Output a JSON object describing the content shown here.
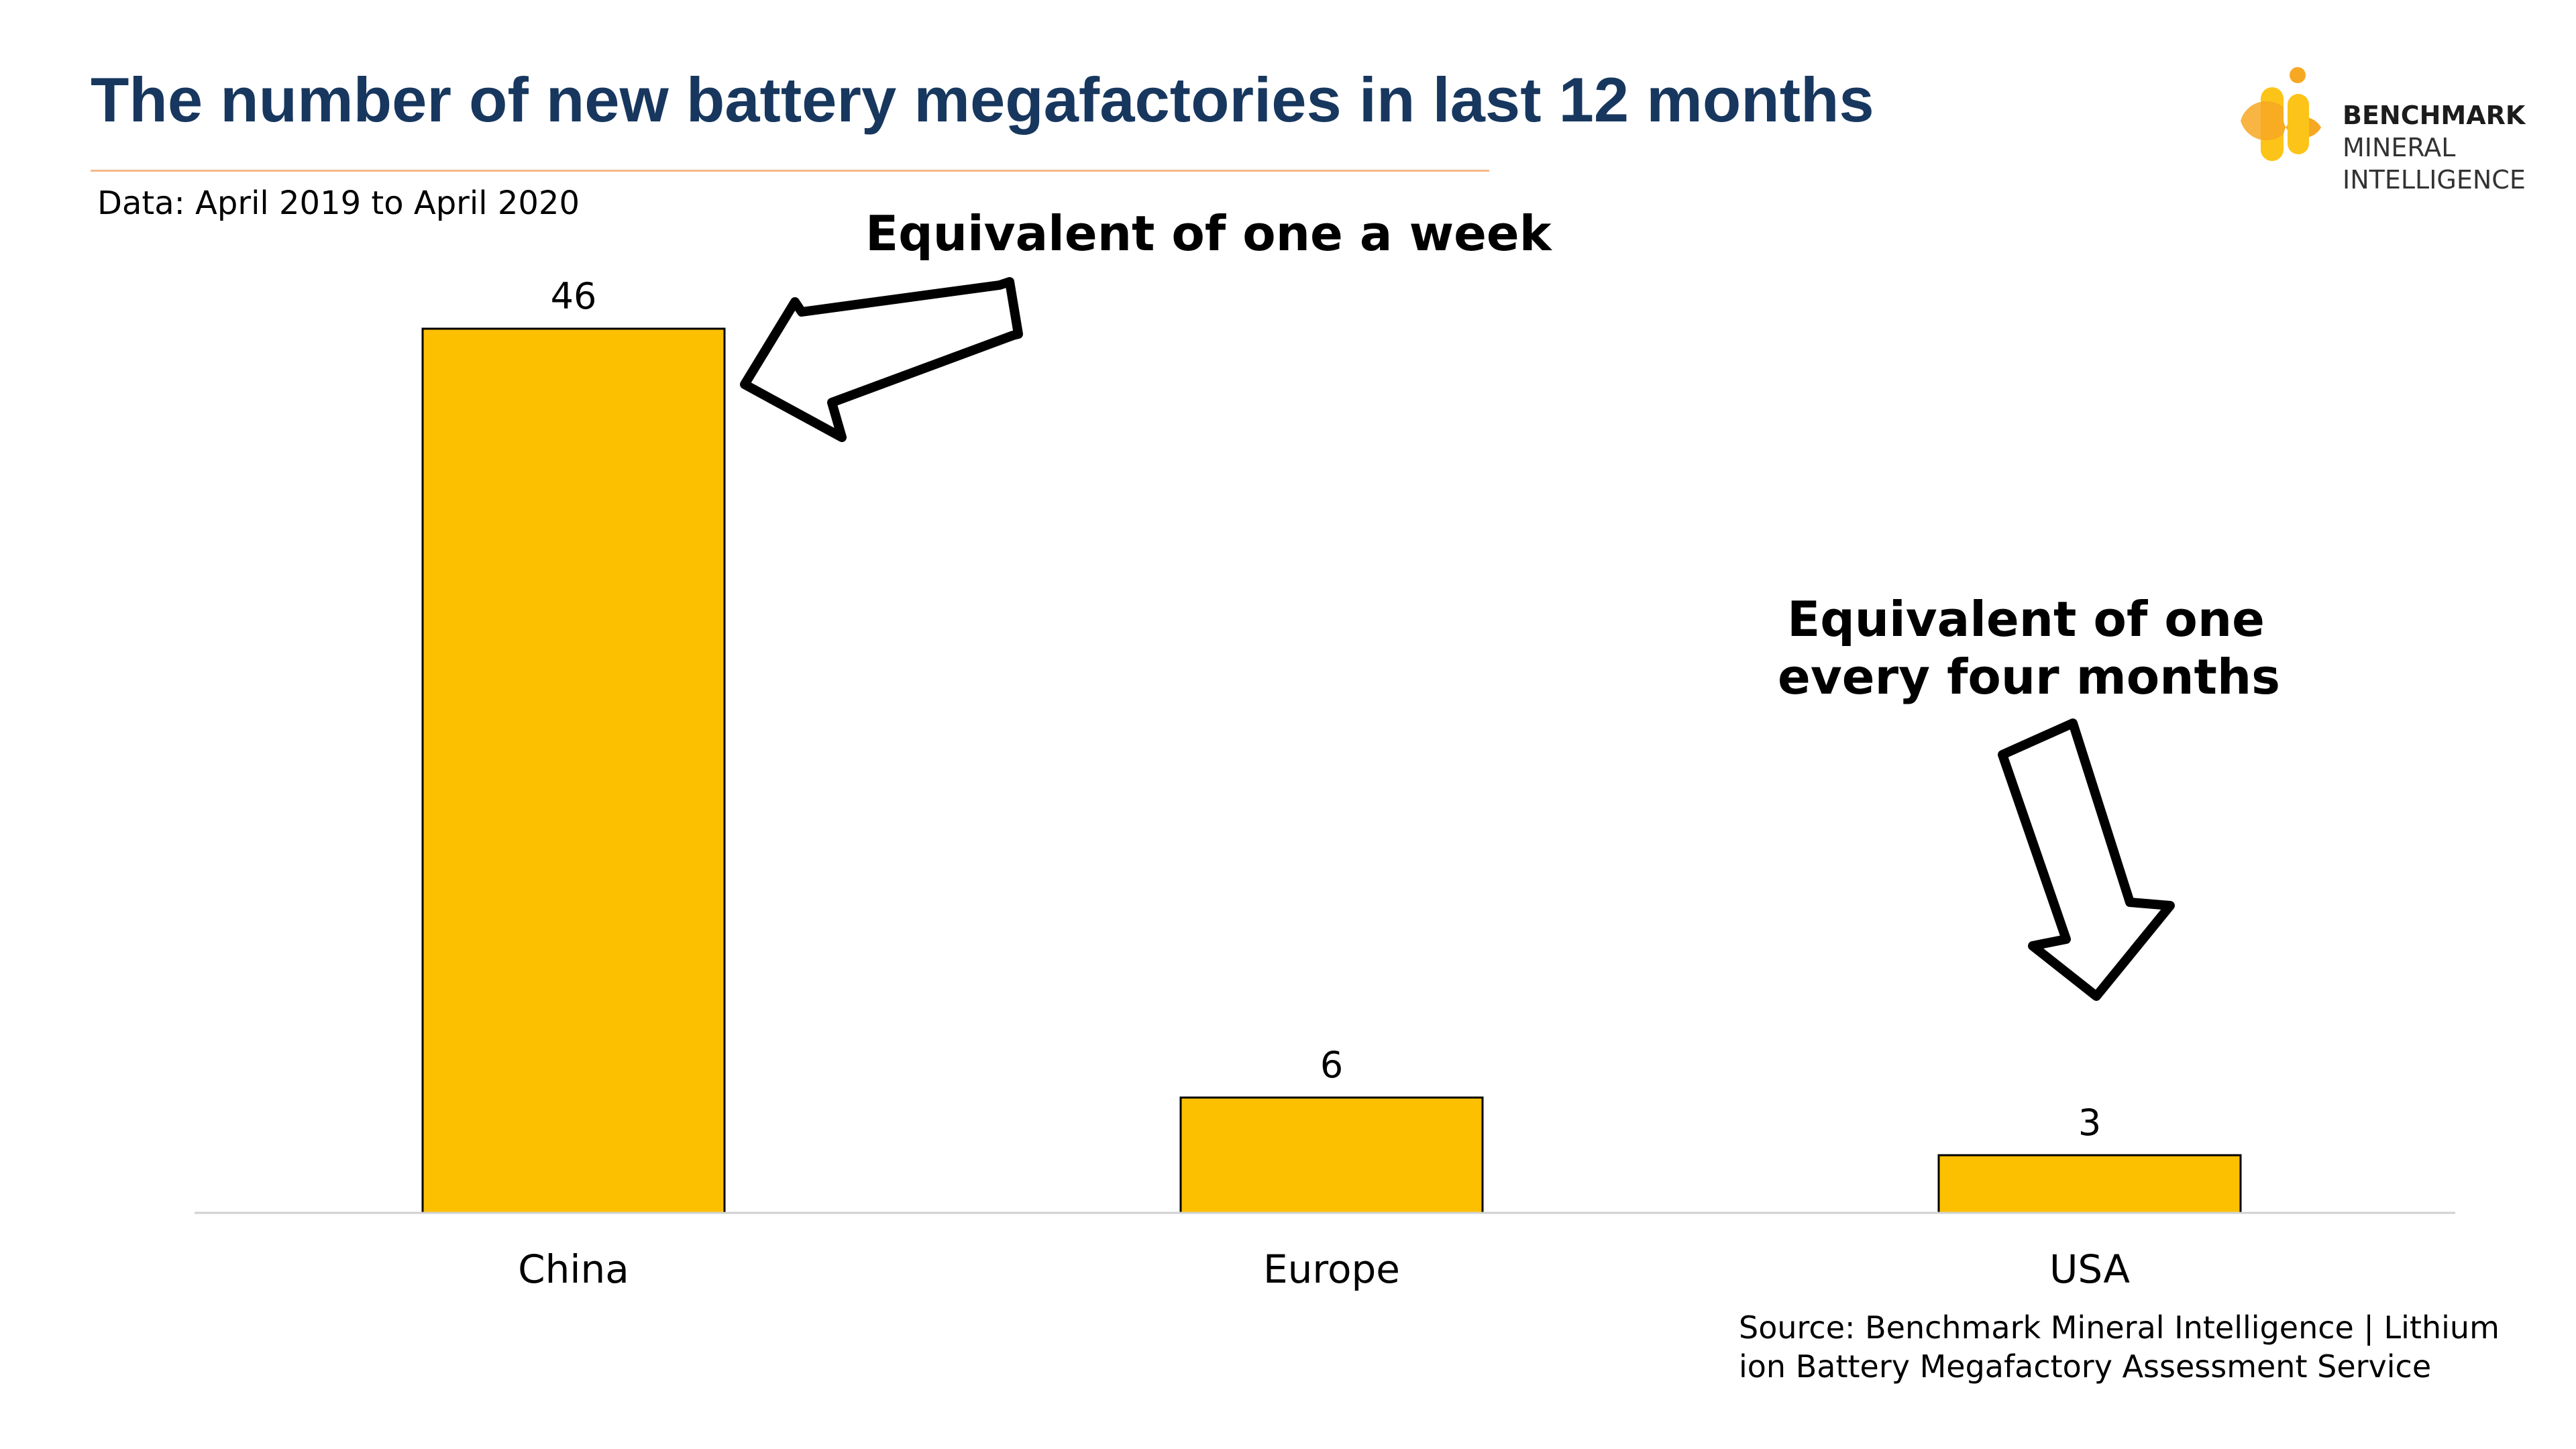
{
  "title": "The number of new battery megafactories in last 12 months",
  "subtitle": "Data: April 2019 to April 2020",
  "logo": {
    "line1": "BENCHMARK",
    "line2": "MINERAL",
    "line3": "INTELLIGENCE"
  },
  "annotations": {
    "china": "Equivalent of one a week",
    "usa_line1": "Equivalent of one",
    "usa_line2": "every four months"
  },
  "source": "Source: Benchmark Mineral Intelligence | Lithium ion Battery Megafactory Assessment Service",
  "colors": {
    "bar": "#fdc000",
    "title": "#17375e",
    "rule": "#f5b98a",
    "logo_orange": "#f7a823",
    "logo_yellow": "#fcc418"
  },
  "chart_data": {
    "type": "bar",
    "categories": [
      "China",
      "Europe",
      "USA"
    ],
    "values": [
      46,
      6,
      3
    ],
    "title": "The number of new battery megafactories in last 12 months",
    "xlabel": "",
    "ylabel": "",
    "ylim": [
      0,
      46
    ],
    "grid": false,
    "legend": "none",
    "data_labels": [
      "46",
      "6",
      "3"
    ]
  }
}
